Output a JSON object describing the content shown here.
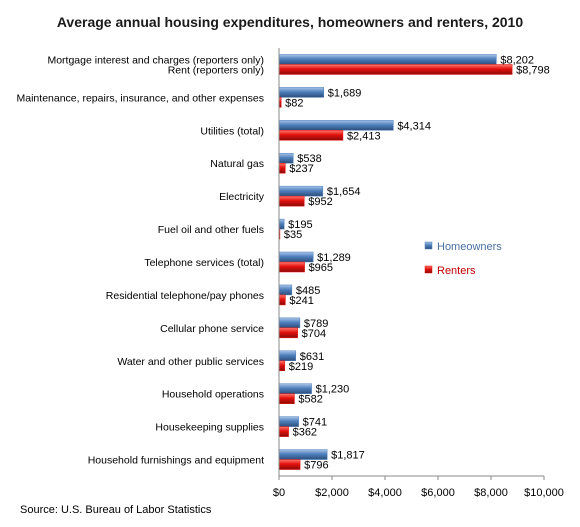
{
  "title": "Average annual housing expenditures, homeowners and renters, 2010",
  "source": "Source: U.S. Bureau of Labor Statistics",
  "colors": {
    "homeowners": "#4f81bd",
    "renters": "#e3110e"
  },
  "chart_data": {
    "type": "bar",
    "orientation": "horizontal",
    "title": "Average annual housing expenditures, homeowners and renters, 2010",
    "xlim": [
      0,
      10000
    ],
    "x_ticks": [
      "$0",
      "$2,000",
      "$4,000",
      "$6,000",
      "$8,000",
      "$10,000"
    ],
    "x_tick_values": [
      0,
      2000,
      4000,
      6000,
      8000,
      10000
    ],
    "legend_position": "right",
    "grid": false,
    "categories": [
      "Mortgage interest and charges (reporters only)",
      "Maintenance, repairs, insurance, and other expenses",
      "Utilities (total)",
      "Natural gas",
      "Electricity",
      "Fuel oil and other fuels",
      "Telephone services (total)",
      "Residential telephone/pay phones",
      "Cellular phone service",
      "Water and other public services",
      "Household operations",
      "Housekeeping supplies",
      "Household furnishings and equipment"
    ],
    "second_label_first_row": "Rent (reporters only)",
    "series": [
      {
        "name": "Homeowners",
        "values": [
          8202,
          1689,
          4314,
          538,
          1654,
          195,
          1289,
          485,
          789,
          631,
          1230,
          741,
          1817
        ],
        "labels": [
          "$8,202",
          "$1,689",
          "$4,314",
          "$538",
          "$1,654",
          "$195",
          "$1,289",
          "$485",
          "$789",
          "$631",
          "$1,230",
          "$741",
          "$1,817"
        ]
      },
      {
        "name": "Renters",
        "values": [
          8798,
          82,
          2413,
          237,
          952,
          35,
          965,
          241,
          704,
          219,
          582,
          362,
          796
        ],
        "labels": [
          "$8,798",
          "$82",
          "$2,413",
          "$237",
          "$952",
          "$35",
          "$965",
          "$241",
          "$704",
          "$219",
          "$582",
          "$362",
          "$796"
        ]
      }
    ]
  }
}
